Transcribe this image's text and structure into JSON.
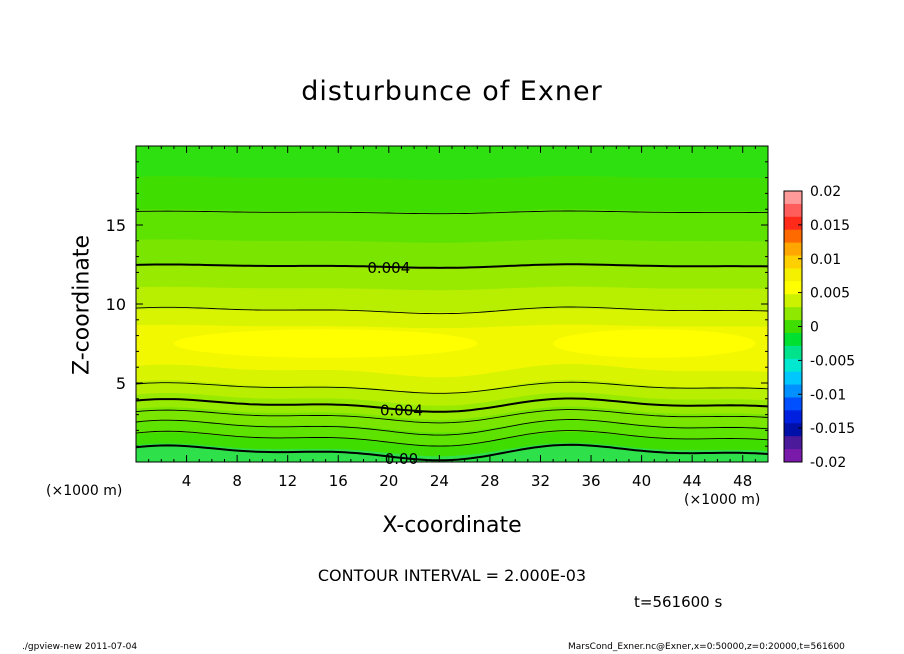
{
  "chart_data": {
    "type": "heatmap",
    "title": "disturbunce of Exner",
    "xlabel": "X-coordinate",
    "ylabel": "Z-coordinate",
    "x_unit_left": "(×1000 m)",
    "x_unit_right": "(×1000 m)",
    "xlim": [
      0,
      50
    ],
    "ylim": [
      0,
      20
    ],
    "x_ticks": [
      4,
      8,
      12,
      16,
      20,
      24,
      28,
      32,
      36,
      40,
      44,
      48
    ],
    "y_ticks": [
      5,
      10,
      15
    ],
    "colorbar": {
      "ticks": [
        "0.02",
        "0.015",
        "0.01",
        "0.005",
        "0",
        "-0.005",
        "-0.01",
        "-0.015",
        "-0.02"
      ],
      "range": [
        -0.02,
        0.02
      ],
      "step": 0.0025,
      "colors": [
        "#ff9a9a",
        "#ff5c5c",
        "#ff2a1a",
        "#ff6a00",
        "#ffa600",
        "#ffd000",
        "#f5ef00",
        "#ffff00",
        "#ccf200",
        "#8ee800",
        "#40dd00",
        "#00e030",
        "#00e38a",
        "#00e8d0",
        "#00c8ff",
        "#0090ff",
        "#0050ff",
        "#0020e0",
        "#0010a8",
        "#4a1a9a",
        "#7a1aaa"
      ]
    },
    "fill_bands": [
      {
        "z": [
          0,
          0.8
        ],
        "color": "#2ee04a"
      },
      {
        "z": [
          0.8,
          1.5
        ],
        "color": "#40dd00"
      },
      {
        "z": [
          1.5,
          2.3
        ],
        "color": "#5ee200"
      },
      {
        "z": [
          2.3,
          3.1
        ],
        "color": "#7ae600"
      },
      {
        "z": [
          3.1,
          4.0
        ],
        "color": "#98ea00"
      },
      {
        "z": [
          4.0,
          4.8
        ],
        "color": "#b8ef00"
      },
      {
        "z": [
          4.8,
          5.8
        ],
        "color": "#d8f400"
      },
      {
        "z": [
          5.8,
          8.6
        ],
        "color": "#f2f800"
      },
      {
        "z": [
          8.6,
          9.6
        ],
        "color": "#d8f400"
      },
      {
        "z": [
          9.6,
          11.0
        ],
        "color": "#b8ef00"
      },
      {
        "z": [
          11.0,
          12.4
        ],
        "color": "#98ea00"
      },
      {
        "z": [
          12.4,
          14.0
        ],
        "color": "#7ae600"
      },
      {
        "z": [
          14.0,
          15.9
        ],
        "color": "#5ee200"
      },
      {
        "z": [
          15.9,
          18.0
        ],
        "color": "#40dd00"
      },
      {
        "z": [
          18.0,
          20.0
        ],
        "color": "#2ee010"
      }
    ],
    "yellow_core": [
      {
        "x": [
          3,
          27
        ],
        "z": [
          6.6,
          8.4
        ]
      },
      {
        "x": [
          33,
          49
        ],
        "z": [
          6.6,
          8.4
        ]
      }
    ],
    "contour_lines": [
      {
        "z": 0.6,
        "bold": true,
        "amp": 0.35,
        "label": "0.00",
        "label_x": 21
      },
      {
        "z": 1.5,
        "bold": false,
        "amp": 0.35
      },
      {
        "z": 2.2,
        "bold": false,
        "amp": 0.35
      },
      {
        "z": 2.9,
        "bold": false,
        "amp": 0.3
      },
      {
        "z": 3.6,
        "bold": true,
        "amp": 0.3,
        "label": "0.004",
        "label_x": 21
      },
      {
        "z": 4.7,
        "bold": false,
        "amp": 0.25
      },
      {
        "z": 9.6,
        "bold": false,
        "amp": 0.15
      },
      {
        "z": 12.4,
        "bold": true,
        "amp": 0.08,
        "label": "0.004",
        "label_x": 20
      },
      {
        "z": 15.8,
        "bold": false,
        "amp": 0.06
      }
    ],
    "contour_interval": "CONTOUR INTERVAL = 2.000E-03",
    "time_label": "t=561600 s"
  },
  "footer": {
    "left": "./gpview-new   2011-07-04",
    "right": "MarsCond_Exner.nc@Exner,x=0:50000,z=0:20000,t=561600"
  }
}
